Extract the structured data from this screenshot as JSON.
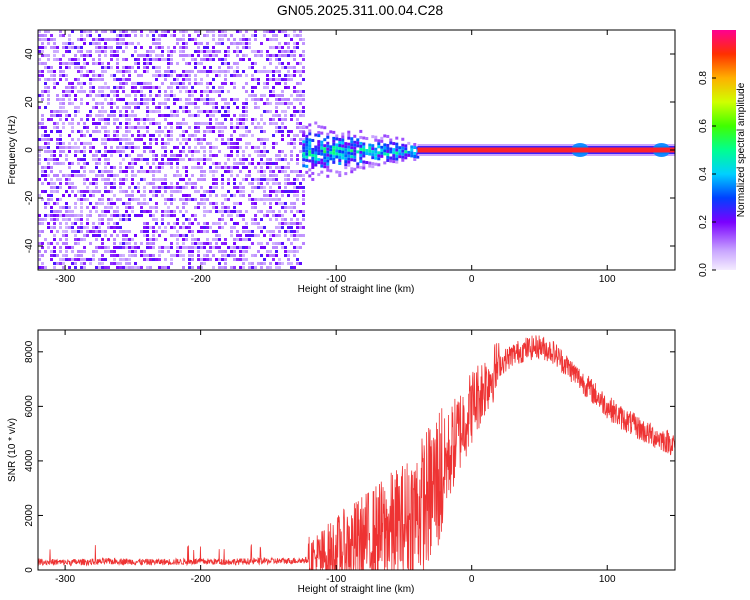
{
  "title": "GN05.2025.311.00.04.C28",
  "colors": {
    "snr_line": "#ee3333",
    "axis": "#000000",
    "background": "#ffffff"
  },
  "chart_data": [
    {
      "type": "heatmap",
      "xlabel": "Height of straight line (km)",
      "ylabel": "Frequency (Hz)",
      "xlim": [
        -320,
        150
      ],
      "ylim": [
        -50,
        50
      ],
      "x_ticks": [
        -300,
        -200,
        -100,
        0,
        100
      ],
      "y_ticks": [
        -40,
        -20,
        0,
        20,
        40
      ],
      "description_regions": [
        {
          "x_from": -320,
          "x_to": -125,
          "freq_from": -50,
          "freq_to": 50,
          "level": 0.2
        },
        {
          "x_from": -125,
          "x_to": -40,
          "freq_from": -8,
          "freq_to": 8,
          "level": 0.45
        },
        {
          "x_from": -40,
          "x_to": 150,
          "freq_from": -1,
          "freq_to": 1,
          "level": 0.9
        }
      ],
      "colorbar": {
        "label": "Normalized spectral amplitude",
        "range": [
          0.0,
          1.0
        ],
        "ticks": [
          "0.0",
          "0.2",
          "0.4",
          "0.6",
          "0.8"
        ],
        "tick_values": [
          0.0,
          0.2,
          0.4,
          0.6,
          0.8
        ]
      }
    },
    {
      "type": "line",
      "xlabel": "Height of straight line (km)",
      "ylabel": "SNR (10 * v/v)",
      "xlim": [
        -320,
        150
      ],
      "ylim": [
        0,
        8800
      ],
      "x_ticks": [
        -300,
        -200,
        -100,
        0,
        100
      ],
      "y_ticks": [
        0,
        2000,
        4000,
        6000,
        8000
      ],
      "series": [
        {
          "x": [
            -320,
            -300,
            -280,
            -260,
            -240,
            -220,
            -200,
            -180,
            -160,
            -140,
            -120,
            -110,
            -100,
            -90,
            -80,
            -70,
            -60,
            -50,
            -40,
            -30,
            -20,
            -10,
            0,
            10,
            20,
            30,
            40,
            50,
            60,
            70,
            80,
            90,
            100,
            110,
            120,
            130,
            140,
            150
          ],
          "values": [
            300,
            280,
            300,
            320,
            290,
            300,
            310,
            300,
            320,
            330,
            360,
            450,
            700,
            900,
            1100,
            1300,
            1500,
            1700,
            2200,
            2800,
            3800,
            5000,
            6000,
            6800,
            7500,
            7900,
            8100,
            8200,
            8000,
            7500,
            7000,
            6500,
            6000,
            5600,
            5300,
            5000,
            4800,
            4600
          ]
        }
      ]
    }
  ]
}
